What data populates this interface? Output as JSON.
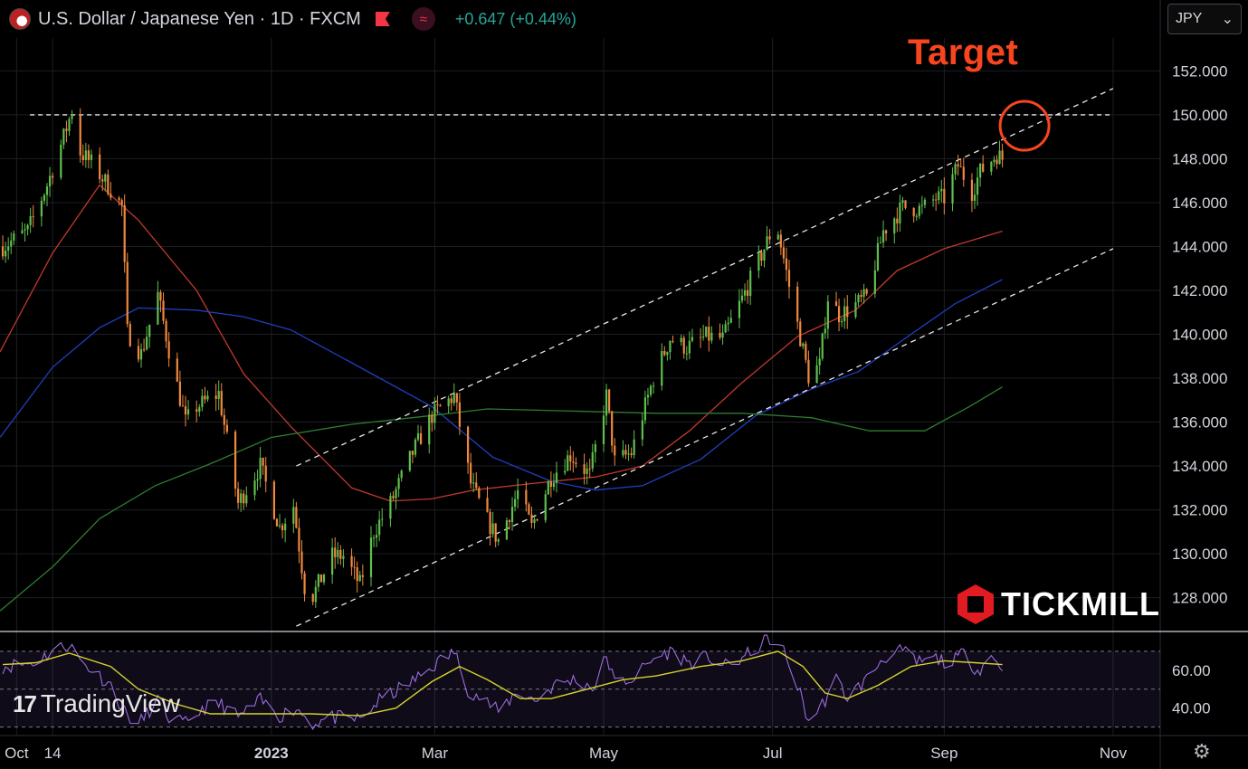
{
  "header": {
    "symbol_title": "U.S. Dollar / Japanese Yen · 1D · FXCM",
    "change": "+0.647 (+0.44%)",
    "currency": "JPY",
    "indicator_icon": "≈"
  },
  "annotations": {
    "target_label": "Target"
  },
  "branding": {
    "tradingview": "TradingView",
    "tickmill": "TICKMILL"
  },
  "colors": {
    "up": "#5fbf4e",
    "down": "#f0883e",
    "ma_fast": "#c0392b",
    "ma_mid": "#1f3fbf",
    "ma_slow": "#2e7d32",
    "rsi": "#9b6ddb",
    "rsi_signal": "#d4d42a",
    "target": "#f7461f",
    "positive_change": "#26a69a"
  },
  "chart_data": {
    "type": "candlestick",
    "title": "U.S. Dollar / Japanese Yen · 1D · FXCM",
    "y_ticks": [
      "152.000",
      "150.000",
      "148.000",
      "146.000",
      "144.000",
      "142.000",
      "140.000",
      "138.000",
      "136.000",
      "134.000",
      "132.000",
      "130.000",
      "128.000"
    ],
    "x_ticks": [
      "Oct",
      "14",
      "2023",
      "Mar",
      "May",
      "Jul",
      "Sep",
      "Nov"
    ],
    "ylim": [
      126.5,
      153.5
    ],
    "xlim": [
      "2022-09-25",
      "2023-11-18"
    ],
    "price_path": [
      [
        "2022-09-26",
        144.0
      ],
      [
        "2022-10-05",
        144.7
      ],
      [
        "2022-10-12",
        146.8
      ],
      [
        "2022-10-18",
        149.0
      ],
      [
        "2022-10-21",
        150.2
      ],
      [
        "2022-10-24",
        148.3
      ],
      [
        "2022-10-28",
        147.8
      ],
      [
        "2022-11-04",
        146.6
      ],
      [
        "2022-11-08",
        145.8
      ],
      [
        "2022-11-10",
        140.1
      ],
      [
        "2022-11-15",
        139.1
      ],
      [
        "2022-11-21",
        141.8
      ],
      [
        "2022-11-25",
        139.3
      ],
      [
        "2022-12-01",
        136.0
      ],
      [
        "2022-12-05",
        136.7
      ],
      [
        "2022-12-13",
        137.3
      ],
      [
        "2022-12-20",
        132.3
      ],
      [
        "2022-12-28",
        134.0
      ],
      [
        "2023-01-04",
        131.2
      ],
      [
        "2023-01-09",
        132.2
      ],
      [
        "2023-01-13",
        128.5
      ],
      [
        "2023-01-16",
        128.1
      ],
      [
        "2023-01-23",
        129.9
      ],
      [
        "2023-01-27",
        129.9
      ],
      [
        "2023-02-02",
        128.6
      ],
      [
        "2023-02-07",
        131.0
      ],
      [
        "2023-02-13",
        132.3
      ],
      [
        "2023-02-21",
        134.6
      ],
      [
        "2023-02-28",
        136.3
      ],
      [
        "2023-03-08",
        137.2
      ],
      [
        "2023-03-14",
        133.2
      ],
      [
        "2023-03-20",
        131.5
      ],
      [
        "2023-03-24",
        130.6
      ],
      [
        "2023-03-31",
        132.8
      ],
      [
        "2023-04-05",
        131.2
      ],
      [
        "2023-04-12",
        133.5
      ],
      [
        "2023-04-19",
        134.5
      ],
      [
        "2023-04-26",
        133.6
      ],
      [
        "2023-05-02",
        137.2
      ],
      [
        "2023-05-05",
        134.2
      ],
      [
        "2023-05-11",
        134.6
      ],
      [
        "2023-05-19",
        138.0
      ],
      [
        "2023-05-25",
        139.8
      ],
      [
        "2023-05-31",
        139.4
      ],
      [
        "2023-06-07",
        139.9
      ],
      [
        "2023-06-13",
        139.8
      ],
      [
        "2023-06-20",
        141.6
      ],
      [
        "2023-06-30",
        144.5
      ],
      [
        "2023-07-03",
        144.7
      ],
      [
        "2023-07-07",
        142.2
      ],
      [
        "2023-07-14",
        138.1
      ],
      [
        "2023-07-18",
        138.6
      ],
      [
        "2023-07-21",
        141.7
      ],
      [
        "2023-07-25",
        140.9
      ],
      [
        "2023-07-28",
        141.1
      ],
      [
        "2023-08-04",
        141.7
      ],
      [
        "2023-08-10",
        144.7
      ],
      [
        "2023-08-17",
        145.8
      ],
      [
        "2023-08-24",
        145.7
      ],
      [
        "2023-08-29",
        146.2
      ],
      [
        "2023-09-01",
        146.2
      ],
      [
        "2023-09-06",
        147.7
      ],
      [
        "2023-09-11",
        146.5
      ],
      [
        "2023-09-14",
        147.4
      ],
      [
        "2023-09-20",
        148.2
      ],
      [
        "2023-09-22",
        148.0
      ]
    ],
    "moving_averages": [
      {
        "period": "fast",
        "color": "#c0392b",
        "points": [
          [
            "2022-09-25",
            139.2
          ],
          [
            "2022-10-14",
            143.7
          ],
          [
            "2022-10-31",
            146.8
          ],
          [
            "2022-11-14",
            145.2
          ],
          [
            "2022-12-05",
            142.0
          ],
          [
            "2022-12-22",
            138.2
          ],
          [
            "2023-01-08",
            135.8
          ],
          [
            "2023-01-30",
            133.0
          ],
          [
            "2023-02-13",
            132.4
          ],
          [
            "2023-02-28",
            132.5
          ],
          [
            "2023-03-15",
            132.9
          ],
          [
            "2023-04-05",
            133.2
          ],
          [
            "2023-04-28",
            133.5
          ],
          [
            "2023-05-15",
            134.0
          ],
          [
            "2023-06-01",
            135.6
          ],
          [
            "2023-06-20",
            137.8
          ],
          [
            "2023-07-10",
            139.9
          ],
          [
            "2023-07-31",
            141.1
          ],
          [
            "2023-08-15",
            142.9
          ],
          [
            "2023-09-01",
            143.9
          ],
          [
            "2023-09-22",
            144.7
          ]
        ]
      },
      {
        "period": "mid",
        "color": "#1f3fbf",
        "points": [
          [
            "2022-09-25",
            135.3
          ],
          [
            "2022-10-14",
            138.5
          ],
          [
            "2022-10-31",
            140.3
          ],
          [
            "2022-11-14",
            141.2
          ],
          [
            "2022-12-05",
            141.1
          ],
          [
            "2022-12-22",
            140.8
          ],
          [
            "2023-01-08",
            140.2
          ],
          [
            "2023-01-30",
            138.7
          ],
          [
            "2023-02-28",
            136.7
          ],
          [
            "2023-03-22",
            134.4
          ],
          [
            "2023-04-12",
            133.3
          ],
          [
            "2023-04-28",
            132.9
          ],
          [
            "2023-05-15",
            133.1
          ],
          [
            "2023-06-05",
            134.3
          ],
          [
            "2023-06-25",
            136.3
          ],
          [
            "2023-07-15",
            137.5
          ],
          [
            "2023-08-01",
            138.3
          ],
          [
            "2023-08-20",
            140.0
          ],
          [
            "2023-09-05",
            141.4
          ],
          [
            "2023-09-22",
            142.5
          ]
        ]
      },
      {
        "period": "slow",
        "color": "#2e7d32",
        "points": [
          [
            "2022-09-25",
            127.4
          ],
          [
            "2022-10-14",
            129.4
          ],
          [
            "2022-10-31",
            131.6
          ],
          [
            "2022-11-20",
            133.1
          ],
          [
            "2022-12-10",
            134.1
          ],
          [
            "2023-01-01",
            135.3
          ],
          [
            "2023-01-30",
            135.9
          ],
          [
            "2023-02-28",
            136.3
          ],
          [
            "2023-03-20",
            136.6
          ],
          [
            "2023-04-20",
            136.5
          ],
          [
            "2023-05-20",
            136.4
          ],
          [
            "2023-06-20",
            136.4
          ],
          [
            "2023-07-15",
            136.2
          ],
          [
            "2023-08-05",
            135.6
          ],
          [
            "2023-08-25",
            135.6
          ],
          [
            "2023-09-10",
            136.7
          ],
          [
            "2023-09-22",
            137.6
          ]
        ]
      }
    ],
    "channel_lines": [
      {
        "from": [
          "2023-01-10",
          134.0
        ],
        "to": [
          "2023-11-01",
          151.2
        ]
      },
      {
        "from": [
          "2023-01-10",
          126.7
        ],
        "to": [
          "2023-11-01",
          143.9
        ]
      }
    ],
    "resistance": {
      "value": 150.0,
      "from": "2022-10-14",
      "to": "2023-11-01"
    },
    "target": {
      "date": "2023-09-30",
      "price": 149.5
    },
    "rsi": {
      "ticks": [
        "60.00",
        "40.00"
      ],
      "ylim": [
        26,
        80
      ],
      "upper": 70,
      "mid": 50,
      "lower": 30,
      "line": [
        [
          "2022-09-26",
          62
        ],
        [
          "2022-10-07",
          64
        ],
        [
          "2022-10-14",
          70
        ],
        [
          "2022-10-20",
          74
        ],
        [
          "2022-10-24",
          65
        ],
        [
          "2022-10-31",
          57
        ],
        [
          "2022-11-04",
          52
        ],
        [
          "2022-11-09",
          38
        ],
        [
          "2022-11-14",
          31
        ],
        [
          "2022-11-21",
          45
        ],
        [
          "2022-11-25",
          35
        ],
        [
          "2022-12-02",
          31
        ],
        [
          "2022-12-07",
          40
        ],
        [
          "2022-12-14",
          42
        ],
        [
          "2022-12-20",
          35
        ],
        [
          "2022-12-28",
          44
        ],
        [
          "2023-01-04",
          36
        ],
        [
          "2023-01-10",
          40
        ],
        [
          "2023-01-16",
          32
        ],
        [
          "2023-01-23",
          35
        ],
        [
          "2023-02-02",
          34
        ],
        [
          "2023-02-09",
          44
        ],
        [
          "2023-02-15",
          49
        ],
        [
          "2023-02-23",
          56
        ],
        [
          "2023-03-01",
          63
        ],
        [
          "2023-03-08",
          70
        ],
        [
          "2023-03-13",
          50
        ],
        [
          "2023-03-20",
          43
        ],
        [
          "2023-03-24",
          38
        ],
        [
          "2023-03-31",
          49
        ],
        [
          "2023-04-06",
          44
        ],
        [
          "2023-04-13",
          52
        ],
        [
          "2023-04-20",
          55
        ],
        [
          "2023-04-28",
          51
        ],
        [
          "2023-05-02",
          68
        ],
        [
          "2023-05-05",
          53
        ],
        [
          "2023-05-12",
          56
        ],
        [
          "2023-05-19",
          66
        ],
        [
          "2023-05-25",
          70
        ],
        [
          "2023-06-01",
          64
        ],
        [
          "2023-06-08",
          67
        ],
        [
          "2023-06-14",
          62
        ],
        [
          "2023-06-21",
          67
        ],
        [
          "2023-06-30",
          77
        ],
        [
          "2023-07-05",
          70
        ],
        [
          "2023-07-10",
          52
        ],
        [
          "2023-07-14",
          33
        ],
        [
          "2023-07-19",
          42
        ],
        [
          "2023-07-24",
          55
        ],
        [
          "2023-07-28",
          46
        ],
        [
          "2023-08-04",
          55
        ],
        [
          "2023-08-10",
          67
        ],
        [
          "2023-08-17",
          70
        ],
        [
          "2023-08-22",
          64
        ],
        [
          "2023-08-29",
          66
        ],
        [
          "2023-09-04",
          64
        ],
        [
          "2023-09-08",
          69
        ],
        [
          "2023-09-13",
          60
        ],
        [
          "2023-09-18",
          67
        ],
        [
          "2023-09-22",
          62
        ]
      ],
      "signal": [
        [
          "2022-09-26",
          63
        ],
        [
          "2022-10-08",
          64
        ],
        [
          "2022-10-20",
          69
        ],
        [
          "2022-11-04",
          62
        ],
        [
          "2022-11-14",
          50
        ],
        [
          "2022-11-28",
          42
        ],
        [
          "2022-12-10",
          37
        ],
        [
          "2022-12-28",
          37
        ],
        [
          "2023-01-15",
          37
        ],
        [
          "2023-02-02",
          36
        ],
        [
          "2023-02-15",
          40
        ],
        [
          "2023-02-28",
          54
        ],
        [
          "2023-03-10",
          62
        ],
        [
          "2023-03-20",
          55
        ],
        [
          "2023-04-01",
          45
        ],
        [
          "2023-04-12",
          45
        ],
        [
          "2023-04-25",
          50
        ],
        [
          "2023-05-08",
          55
        ],
        [
          "2023-05-20",
          57
        ],
        [
          "2023-06-05",
          62
        ],
        [
          "2023-06-20",
          65
        ],
        [
          "2023-07-03",
          70
        ],
        [
          "2023-07-12",
          62
        ],
        [
          "2023-07-20",
          48
        ],
        [
          "2023-07-28",
          45
        ],
        [
          "2023-08-08",
          52
        ],
        [
          "2023-08-20",
          62
        ],
        [
          "2023-09-01",
          65
        ],
        [
          "2023-09-12",
          64
        ],
        [
          "2023-09-22",
          63
        ]
      ]
    }
  }
}
